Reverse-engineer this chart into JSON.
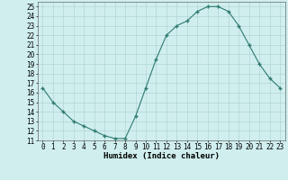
{
  "x": [
    0,
    1,
    2,
    3,
    4,
    5,
    6,
    7,
    8,
    9,
    10,
    11,
    12,
    13,
    14,
    15,
    16,
    17,
    18,
    19,
    20,
    21,
    22,
    23
  ],
  "y": [
    16.5,
    15.0,
    14.0,
    13.0,
    12.5,
    12.0,
    11.5,
    11.2,
    11.2,
    13.5,
    16.5,
    19.5,
    22.0,
    23.0,
    23.5,
    24.5,
    25.0,
    25.0,
    24.5,
    23.0,
    21.0,
    19.0,
    17.5,
    16.5
  ],
  "xlabel": "Humidex (Indice chaleur)",
  "xlim": [
    -0.5,
    23.5
  ],
  "ylim": [
    11,
    25.5
  ],
  "yticks": [
    11,
    12,
    13,
    14,
    15,
    16,
    17,
    18,
    19,
    20,
    21,
    22,
    23,
    24,
    25
  ],
  "xticks": [
    0,
    1,
    2,
    3,
    4,
    5,
    6,
    7,
    8,
    9,
    10,
    11,
    12,
    13,
    14,
    15,
    16,
    17,
    18,
    19,
    20,
    21,
    22,
    23
  ],
  "line_color": "#2e7b6e",
  "marker_color": "#2e7b6e",
  "bg_color": "#d0eeee",
  "grid_color": "#aad0cc",
  "tick_fontsize": 5.5,
  "xlabel_fontsize": 6.5
}
